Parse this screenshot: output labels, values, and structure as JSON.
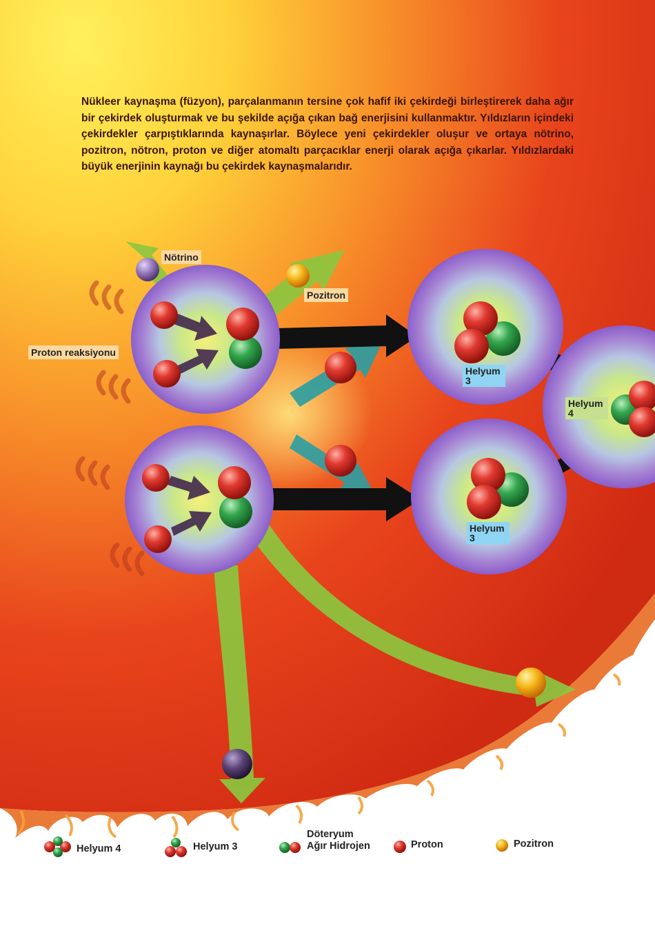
{
  "intro_text": "Nükleer kaynaşma (füzyon), parçalanmanın tersine çok hafif iki çekirdeği birleştirerek daha ağır bir çekirdek oluşturmak ve bu şekilde açığa çıkan bağ enerjisini kullanmaktır. Yıldızların içindeki çekirdekler çarpıştıklarında kaynaşırlar. Böylece yeni çekirdekler oluşur ve ortaya nötrino, pozitron, nötron, proton ve diğer atomaltı parçacıklar enerji olarak açığa çıkarlar. Yıldızlardaki büyük enerjinin kaynağı bu çekirdek kaynaşmalarıdır.",
  "labels": {
    "notrino": "Nötrino",
    "pozitron": "Pozitron",
    "proton_reaksiyonu": "Proton reaksiyonu",
    "helyum3_top_1": "Helyum",
    "helyum3_top_2": "3",
    "helyum3_bottom_1": "Helyum",
    "helyum3_bottom_2": "3",
    "helyum4_1": "Helyum",
    "helyum4_2": "4"
  },
  "legend": {
    "helyum4": "Helyum 4",
    "helyum3": "Helyum 3",
    "doteryum_1": "Döteryum",
    "doteryum_2": "Ağır Hidrojen",
    "proton": "Proton",
    "pozitron": "Pozitron"
  },
  "colors": {
    "proton": "#d62b24",
    "neutron": "#2f9a46",
    "positron": "#f4b516",
    "neutrino": "#9b7fbf",
    "arrow_green": "#8cc63f",
    "arrow_teal": "#2a9ea3",
    "arrow_black": "#111111"
  }
}
